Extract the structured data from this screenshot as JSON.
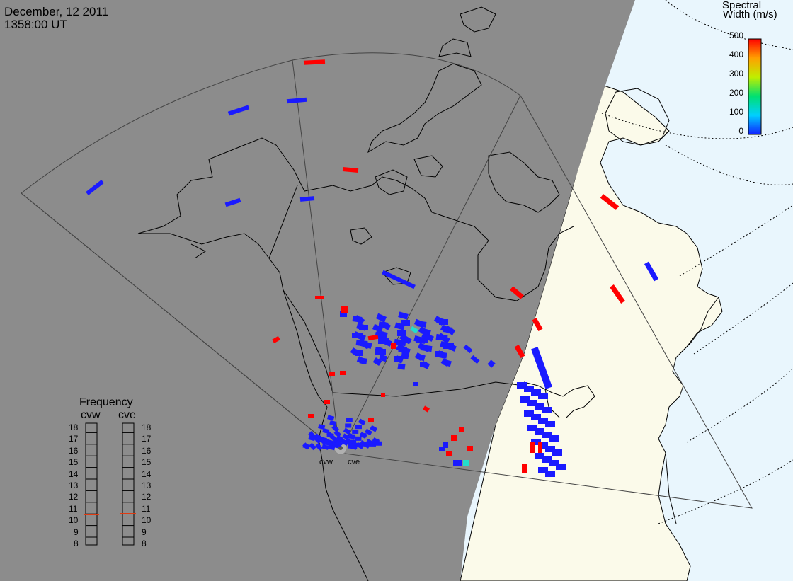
{
  "header": {
    "date": "December, 12 2011",
    "time": "1358:00 UT"
  },
  "colorbar": {
    "title_line1": "Spectral",
    "title_line2": "Width (m/s)",
    "ticks": [
      "500",
      "400",
      "300",
      "200",
      "100",
      "0"
    ]
  },
  "frequency_panel": {
    "title": "Frequency",
    "radars": [
      {
        "name": "cvw",
        "frequency_mhz": 10.6,
        "marker_color": "#e03a10"
      },
      {
        "name": "cve",
        "frequency_mhz": 10.7,
        "marker_color": "#e03a10"
      }
    ],
    "scale": [
      "18",
      "17",
      "16",
      "15",
      "14",
      "13",
      "12",
      "11",
      "10",
      "9",
      "8"
    ]
  },
  "sites": [
    {
      "name": "cvw"
    },
    {
      "name": "cve"
    }
  ],
  "colors": {
    "night_shade": "#8c8c8c",
    "day_land": "#fbfaea",
    "day_ocean": "#e9f6fd",
    "low_width": "#1a1aff",
    "high_width": "#ff0000",
    "mid_width": "#22ddcc"
  }
}
